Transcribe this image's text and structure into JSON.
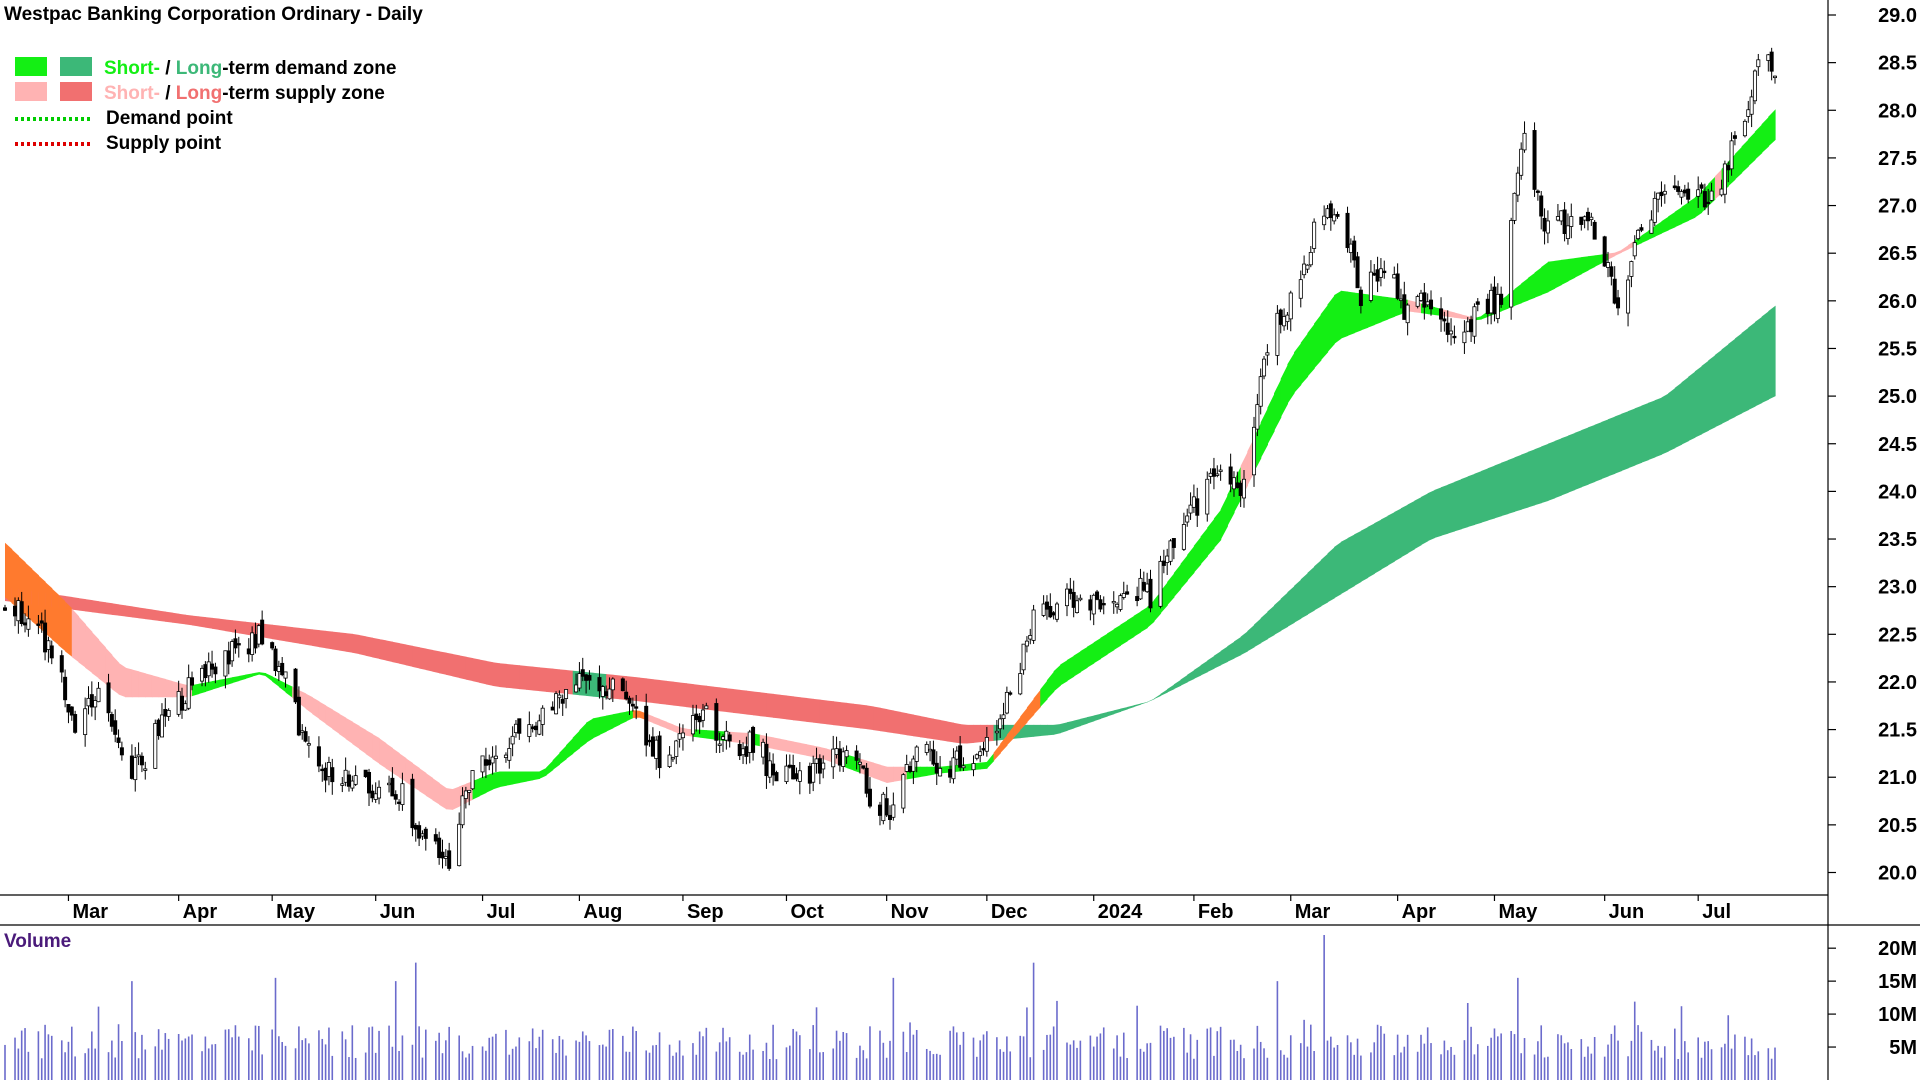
{
  "title": "Westpac Banking Corporation Ordinary - Daily",
  "legend": {
    "rows": [
      {
        "swatches": [
          "#14ef14",
          "#3cb878"
        ],
        "parts": [
          {
            "text": "Short-",
            "color": "#14ef14"
          },
          {
            "text": " / ",
            "color": "#000000"
          },
          {
            "text": "Long",
            "color": "#3cb878"
          },
          {
            "text": "-term demand zone",
            "color": "#000000"
          }
        ]
      },
      {
        "swatches": [
          "#ffb3b3",
          "#f17070"
        ],
        "parts": [
          {
            "text": "Short-",
            "color": "#ffb3b3"
          },
          {
            "text": " / ",
            "color": "#000000"
          },
          {
            "text": "Long",
            "color": "#f17070"
          },
          {
            "text": "-term supply zone",
            "color": "#000000"
          }
        ]
      },
      {
        "dotted": "#00cc00",
        "parts": [
          {
            "text": "Demand point",
            "color": "#000000"
          }
        ]
      },
      {
        "dotted": "#dd0000",
        "parts": [
          {
            "text": "Supply point",
            "color": "#000000"
          }
        ]
      }
    ]
  },
  "volume_label": "Volume",
  "colors": {
    "short_demand": "#14ef14",
    "long_demand": "#3cb878",
    "short_supply": "#ffb3b3",
    "long_supply": "#f17070",
    "transition": "#ff7a2e",
    "volume_bar": "#6b6bcc",
    "candle": "#000000"
  },
  "chart_data": [
    {
      "type": "candlestick",
      "title": "Westpac Banking Corporation Ordinary - Daily",
      "x_range": [
        "2023-02-10",
        "2024-07-24"
      ],
      "ylim": [
        19.8,
        29.1
      ],
      "y_ticks": [
        "20.0",
        "20.5",
        "21.0",
        "21.5",
        "22.0",
        "22.5",
        "23.0",
        "23.5",
        "24.0",
        "24.5",
        "25.0",
        "25.5",
        "26.0",
        "26.5",
        "27.0",
        "27.5",
        "28.0",
        "28.5",
        "29.0"
      ],
      "x_tick_labels": [
        {
          "label": "Mar",
          "date": "2023-03-01"
        },
        {
          "label": "Apr",
          "date": "2023-04-03"
        },
        {
          "label": "May",
          "date": "2023-05-01"
        },
        {
          "label": "Jun",
          "date": "2023-06-01"
        },
        {
          "label": "Jul",
          "date": "2023-07-03"
        },
        {
          "label": "Aug",
          "date": "2023-08-01"
        },
        {
          "label": "Sep",
          "date": "2023-09-01"
        },
        {
          "label": "Oct",
          "date": "2023-10-02"
        },
        {
          "label": "Nov",
          "date": "2023-11-01"
        },
        {
          "label": "Dec",
          "date": "2023-12-01"
        },
        {
          "label": "2024",
          "date": "2024-01-02"
        },
        {
          "label": "Feb",
          "date": "2024-02-01"
        },
        {
          "label": "Mar",
          "date": "2024-03-01"
        },
        {
          "label": "Apr",
          "date": "2024-04-02"
        },
        {
          "label": "May",
          "date": "2024-05-01"
        },
        {
          "label": "Jun",
          "date": "2024-06-03"
        },
        {
          "label": "Jul",
          "date": "2024-07-01"
        }
      ],
      "close_series": [
        [
          "2023-02-10",
          22.75
        ],
        [
          "2023-02-17",
          22.7
        ],
        [
          "2023-02-24",
          22.3
        ],
        [
          "2023-03-03",
          21.6
        ],
        [
          "2023-03-10",
          22.0
        ],
        [
          "2023-03-17",
          21.1
        ],
        [
          "2023-03-24",
          21.2
        ],
        [
          "2023-03-31",
          21.7
        ],
        [
          "2023-04-06",
          21.9
        ],
        [
          "2023-04-14",
          22.2
        ],
        [
          "2023-04-21",
          22.3
        ],
        [
          "2023-04-28",
          22.5
        ],
        [
          "2023-05-05",
          22.0
        ],
        [
          "2023-05-12",
          21.3
        ],
        [
          "2023-05-19",
          21.0
        ],
        [
          "2023-05-26",
          21.05
        ],
        [
          "2023-06-02",
          20.9
        ],
        [
          "2023-06-09",
          20.8
        ],
        [
          "2023-06-16",
          20.3
        ],
        [
          "2023-06-23",
          20.1
        ],
        [
          "2023-06-30",
          21.1
        ],
        [
          "2023-07-07",
          21.2
        ],
        [
          "2023-07-14",
          21.5
        ],
        [
          "2023-07-21",
          21.7
        ],
        [
          "2023-07-28",
          21.95
        ],
        [
          "2023-08-04",
          22.1
        ],
        [
          "2023-08-11",
          21.9
        ],
        [
          "2023-08-18",
          21.7
        ],
        [
          "2023-08-25",
          21.2
        ],
        [
          "2023-09-01",
          21.4
        ],
        [
          "2023-09-08",
          21.7
        ],
        [
          "2023-09-15",
          21.3
        ],
        [
          "2023-09-22",
          21.4
        ],
        [
          "2023-09-29",
          20.95
        ],
        [
          "2023-10-06",
          21.0
        ],
        [
          "2023-10-13",
          21.1
        ],
        [
          "2023-10-20",
          21.3
        ],
        [
          "2023-10-27",
          20.8
        ],
        [
          "2023-11-03",
          20.6
        ],
        [
          "2023-11-10",
          21.4
        ],
        [
          "2023-11-17",
          21.1
        ],
        [
          "2023-11-24",
          21.2
        ],
        [
          "2023-12-01",
          21.35
        ],
        [
          "2023-12-08",
          21.9
        ],
        [
          "2023-12-15",
          22.6
        ],
        [
          "2023-12-22",
          22.85
        ],
        [
          "2024-01-05",
          22.9
        ],
        [
          "2024-01-12",
          23.0
        ],
        [
          "2024-01-19",
          22.9
        ],
        [
          "2024-01-26",
          23.5
        ],
        [
          "2024-02-02",
          23.9
        ],
        [
          "2024-02-09",
          24.2
        ],
        [
          "2024-02-16",
          24.0
        ],
        [
          "2024-02-23",
          25.6
        ],
        [
          "2024-03-01",
          26.0
        ],
        [
          "2024-03-08",
          26.7
        ],
        [
          "2024-03-15",
          27.0
        ],
        [
          "2024-03-22",
          26.1
        ],
        [
          "2024-03-29",
          26.3
        ],
        [
          "2024-04-05",
          25.9
        ],
        [
          "2024-04-12",
          26.0
        ],
        [
          "2024-04-19",
          25.5
        ],
        [
          "2024-04-26",
          25.9
        ],
        [
          "2024-05-03",
          26.0
        ],
        [
          "2024-05-10",
          27.7
        ],
        [
          "2024-05-17",
          26.7
        ],
        [
          "2024-05-24",
          26.9
        ],
        [
          "2024-05-31",
          26.8
        ],
        [
          "2024-06-07",
          25.9
        ],
        [
          "2024-06-14",
          26.9
        ],
        [
          "2024-06-21",
          27.0
        ],
        [
          "2024-06-28",
          27.2
        ],
        [
          "2024-07-05",
          27.1
        ],
        [
          "2024-07-12",
          27.6
        ],
        [
          "2024-07-19",
          28.4
        ],
        [
          "2024-07-24",
          28.5
        ]
      ],
      "short_term_zone_series": [
        [
          "2023-02-10",
          22.9,
          23.45
        ],
        [
          "2023-03-01",
          22.3,
          22.8
        ],
        [
          "2023-03-17",
          21.85,
          22.15
        ],
        [
          "2023-04-06",
          21.85,
          21.95
        ],
        [
          "2023-04-28",
          22.1,
          22.1
        ],
        [
          "2023-05-12",
          21.7,
          21.85
        ],
        [
          "2023-06-02",
          21.15,
          21.4
        ],
        [
          "2023-06-23",
          20.65,
          20.85
        ],
        [
          "2023-07-07",
          20.9,
          21.05
        ],
        [
          "2023-07-21",
          21.0,
          21.05
        ],
        [
          "2023-08-04",
          21.4,
          21.6
        ],
        [
          "2023-08-18",
          21.65,
          21.7
        ],
        [
          "2023-09-01",
          21.45,
          21.5
        ],
        [
          "2023-09-22",
          21.35,
          21.45
        ],
        [
          "2023-10-13",
          21.2,
          21.3
        ],
        [
          "2023-11-01",
          20.95,
          21.1
        ],
        [
          "2023-11-17",
          21.05,
          21.1
        ],
        [
          "2023-12-01",
          21.1,
          21.15
        ],
        [
          "2023-12-22",
          21.95,
          22.15
        ],
        [
          "2024-01-19",
          22.6,
          22.8
        ],
        [
          "2024-02-09",
          23.5,
          23.8
        ],
        [
          "2024-03-01",
          25.0,
          25.4
        ],
        [
          "2024-03-15",
          25.6,
          26.1
        ],
        [
          "2024-04-05",
          25.9,
          26.0
        ],
        [
          "2024-04-26",
          25.8,
          25.8
        ],
        [
          "2024-05-17",
          26.1,
          26.4
        ],
        [
          "2024-06-07",
          26.5,
          26.5
        ],
        [
          "2024-07-01",
          26.9,
          27.1
        ],
        [
          "2024-07-24",
          27.7,
          28.0
        ]
      ],
      "long_term_zone_series": [
        [
          "2023-02-10",
          22.85,
          23.0
        ],
        [
          "2023-04-06",
          22.6,
          22.7
        ],
        [
          "2023-05-26",
          22.3,
          22.5
        ],
        [
          "2023-07-07",
          21.95,
          22.2
        ],
        [
          "2023-08-18",
          21.8,
          22.05
        ],
        [
          "2023-09-22",
          21.65,
          21.9
        ],
        [
          "2023-10-27",
          21.5,
          21.75
        ],
        [
          "2023-11-24",
          21.35,
          21.55
        ],
        [
          "2023-12-22",
          21.45,
          21.55
        ],
        [
          "2024-01-19",
          21.8,
          21.8
        ],
        [
          "2024-02-16",
          22.3,
          22.5
        ],
        [
          "2024-03-15",
          22.9,
          23.45
        ],
        [
          "2024-04-12",
          23.5,
          24.0
        ],
        [
          "2024-05-17",
          23.9,
          24.5
        ],
        [
          "2024-06-21",
          24.4,
          25.0
        ],
        [
          "2024-07-24",
          25.0,
          25.95
        ]
      ],
      "volume": {
        "label": "Volume",
        "y_ticks": [
          "5M",
          "10M",
          "15M",
          "20M"
        ],
        "ylim": [
          0,
          22000000
        ],
        "average": 7000000,
        "peaks": [
          [
            "2023-03-20",
            15000000
          ],
          [
            "2023-05-02",
            15500000
          ],
          [
            "2023-06-07",
            15000000
          ],
          [
            "2023-06-13",
            17800000
          ],
          [
            "2023-11-03",
            15500000
          ],
          [
            "2023-12-15",
            17800000
          ],
          [
            "2024-02-26",
            15000000
          ],
          [
            "2024-03-11",
            22000000
          ],
          [
            "2024-05-08",
            15500000
          ]
        ]
      }
    }
  ]
}
